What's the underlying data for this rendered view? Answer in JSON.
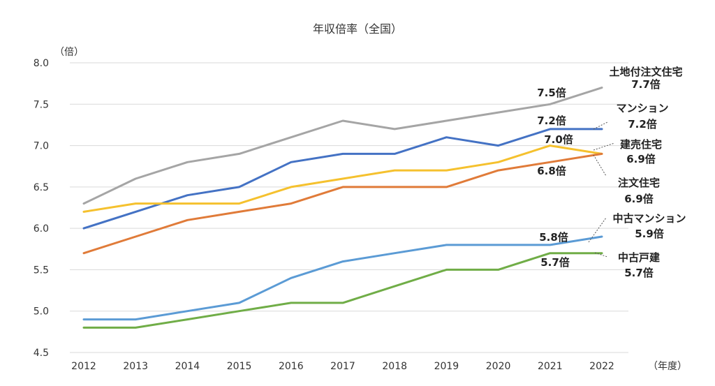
{
  "chart_data": {
    "type": "line",
    "title": "年収倍率（全国）",
    "ylabel": "（倍）",
    "xlabel": "（年度）",
    "ylim": [
      4.5,
      8.0
    ],
    "yticks": [
      "4.5",
      "5.0",
      "5.5",
      "6.0",
      "6.5",
      "7.0",
      "7.5",
      "8.0"
    ],
    "grid": true,
    "categories": [
      "2012",
      "2013",
      "2014",
      "2015",
      "2016",
      "2017",
      "2018",
      "2019",
      "2020",
      "2021",
      "2022"
    ],
    "series": [
      {
        "name": "土地付注文住宅",
        "end_label": "7.7倍",
        "color": "#a5a5a5",
        "values": [
          6.3,
          6.6,
          6.8,
          6.9,
          7.1,
          7.3,
          7.2,
          7.3,
          7.4,
          7.5,
          7.7
        ]
      },
      {
        "name": "マンション",
        "end_label": "7.2倍",
        "color": "#4472c4",
        "values": [
          6.0,
          6.2,
          6.4,
          6.5,
          6.8,
          6.9,
          6.9,
          7.1,
          7.0,
          7.2,
          7.2
        ]
      },
      {
        "name": "建売住宅",
        "end_label": "6.9倍",
        "color": "#f5c12e",
        "values": [
          6.2,
          6.3,
          6.3,
          6.3,
          6.5,
          6.6,
          6.7,
          6.7,
          6.8,
          7.0,
          6.9
        ]
      },
      {
        "name": "注文住宅",
        "end_label": "6.9倍",
        "color": "#e07b39",
        "values": [
          5.7,
          5.9,
          6.1,
          6.2,
          6.3,
          6.5,
          6.5,
          6.5,
          6.7,
          6.8,
          6.9
        ]
      },
      {
        "name": "中古マンション",
        "end_label": "5.9倍",
        "color": "#5b9bd5",
        "values": [
          4.9,
          4.9,
          5.0,
          5.1,
          5.4,
          5.6,
          5.7,
          5.8,
          5.8,
          5.8,
          5.9
        ]
      },
      {
        "name": "中古戸建",
        "end_label": "5.7倍",
        "color": "#70ad47",
        "values": [
          4.8,
          4.8,
          4.9,
          5.0,
          5.1,
          5.1,
          5.3,
          5.5,
          5.5,
          5.7,
          5.7
        ]
      }
    ],
    "annotations_2021": [
      "7.5倍",
      "7.2倍",
      "7.0倍",
      "6.8倍",
      "5.8倍",
      "5.7倍"
    ]
  }
}
